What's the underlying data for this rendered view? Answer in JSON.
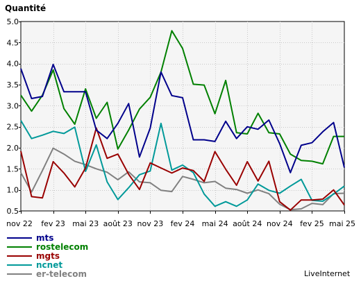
{
  "chart_data": {
    "type": "line",
    "ylabel": "Quantité",
    "ylim": [
      0.5,
      5.0
    ],
    "yticks": [
      "5.0",
      "4.5",
      "4.0",
      "3.5",
      "3.0",
      "2.5",
      "2.0",
      "1.5",
      "1.0",
      "0.5"
    ],
    "grid": true,
    "legend_position": "bottom-left",
    "watermark": "LiveInternet",
    "x": [
      "2022-11",
      "2022-12",
      "2023-01",
      "2023-02",
      "2023-03",
      "2023-04",
      "2023-05",
      "2023-06",
      "2023-07",
      "2023-08",
      "2023-09",
      "2023-10",
      "2023-11",
      "2023-12",
      "2024-01",
      "2024-02",
      "2024-03",
      "2024-04",
      "2024-05",
      "2024-06",
      "2024-07",
      "2024-08",
      "2024-09",
      "2024-10",
      "2024-11",
      "2024-12",
      "2025-01",
      "2025-02",
      "2025-03",
      "2025-04",
      "2025-05"
    ],
    "xticks": [
      {
        "label": "nov 22",
        "index": 0
      },
      {
        "label": "fev 23",
        "index": 3
      },
      {
        "label": "mai 23",
        "index": 6
      },
      {
        "label": "août 23",
        "index": 9
      },
      {
        "label": "nov 23",
        "index": 12
      },
      {
        "label": "fev 24",
        "index": 15
      },
      {
        "label": "mai 24",
        "index": 18
      },
      {
        "label": "août 24",
        "index": 21
      },
      {
        "label": "nov 24",
        "index": 24
      },
      {
        "label": "fev 25",
        "index": 27
      },
      {
        "label": "mai 25",
        "index": 30
      }
    ],
    "series": [
      {
        "name": "mts",
        "color": "#00008b",
        "values": [
          3.88,
          3.17,
          3.22,
          3.98,
          3.33,
          3.33,
          3.33,
          2.42,
          2.22,
          2.58,
          3.05,
          1.78,
          2.47,
          3.8,
          3.24,
          3.19,
          2.19,
          2.19,
          2.15,
          2.63,
          2.22,
          2.5,
          2.44,
          2.66,
          2.1,
          1.41,
          2.06,
          2.12,
          2.38,
          2.6,
          1.53
        ]
      },
      {
        "name": "rostelecom",
        "color": "#008000",
        "values": [
          3.25,
          2.87,
          3.25,
          3.85,
          2.93,
          2.56,
          3.4,
          2.7,
          3.08,
          1.97,
          2.42,
          2.92,
          3.2,
          3.8,
          4.78,
          4.36,
          3.51,
          3.49,
          2.81,
          3.6,
          2.36,
          2.33,
          2.82,
          2.36,
          2.33,
          1.85,
          1.7,
          1.68,
          1.62,
          2.27,
          2.27
        ]
      },
      {
        "name": "mgts",
        "color": "#990000",
        "values": [
          1.92,
          0.84,
          0.81,
          1.67,
          1.4,
          1.07,
          1.52,
          2.47,
          1.75,
          1.85,
          1.37,
          1.01,
          1.64,
          1.52,
          1.4,
          1.52,
          1.46,
          1.2,
          1.91,
          1.49,
          1.11,
          1.67,
          1.21,
          1.68,
          0.72,
          0.52,
          0.76,
          0.76,
          0.78,
          1.0,
          0.64
        ]
      },
      {
        "name": "ncnet",
        "color": "#009999",
        "values": [
          2.65,
          2.22,
          2.3,
          2.39,
          2.34,
          2.49,
          1.44,
          2.07,
          1.19,
          0.77,
          1.05,
          1.36,
          1.45,
          2.58,
          1.47,
          1.59,
          1.41,
          0.9,
          0.61,
          0.72,
          0.61,
          0.76,
          1.14,
          0.99,
          0.92,
          1.09,
          1.25,
          0.75,
          0.73,
          0.9,
          1.09
        ]
      },
      {
        "name": "er-telecom",
        "color": "#808080",
        "values": [
          1.41,
          0.95,
          1.46,
          1.99,
          1.85,
          1.68,
          1.6,
          1.5,
          1.42,
          1.24,
          1.43,
          1.19,
          1.17,
          0.99,
          0.96,
          1.32,
          1.25,
          1.17,
          1.2,
          1.04,
          1.01,
          0.92,
          1.0,
          0.91,
          0.66,
          0.53,
          0.55,
          0.68,
          0.65,
          0.91,
          0.92
        ]
      }
    ]
  }
}
